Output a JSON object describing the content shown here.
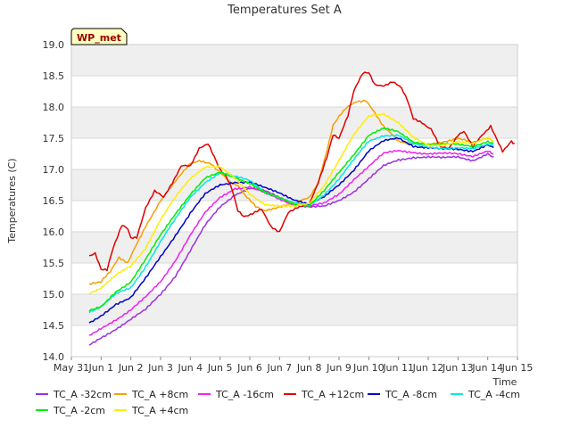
{
  "chart_data": {
    "type": "line",
    "title": "Temperatures Set A",
    "xlabel": "Time",
    "ylabel": "Temperatures (C)",
    "badge": "WP_met",
    "ylim": [
      14.0,
      19.0
    ],
    "xlim": [
      0,
      15
    ],
    "x_ticks": [
      {
        "v": 0,
        "label": "May 31"
      },
      {
        "v": 1,
        "label": "Jun 1"
      },
      {
        "v": 2,
        "label": "Jun 2"
      },
      {
        "v": 3,
        "label": "Jun 3"
      },
      {
        "v": 4,
        "label": "Jun 4"
      },
      {
        "v": 5,
        "label": "Jun 5"
      },
      {
        "v": 6,
        "label": "Jun 6"
      },
      {
        "v": 7,
        "label": "Jun 7"
      },
      {
        "v": 8,
        "label": "Jun 8"
      },
      {
        "v": 9,
        "label": "Jun 9"
      },
      {
        "v": 10,
        "label": "Jun 10"
      },
      {
        "v": 11,
        "label": "Jun 11"
      },
      {
        "v": 12,
        "label": "Jun 12"
      },
      {
        "v": 13,
        "label": "Jun 13"
      },
      {
        "v": 14,
        "label": "Jun 14"
      },
      {
        "v": 15,
        "label": "Jun 15"
      }
    ],
    "y_ticks": [
      "14.0",
      "14.5",
      "15.0",
      "15.5",
      "16.0",
      "16.5",
      "17.0",
      "17.5",
      "18.0",
      "18.5",
      "19.0"
    ],
    "grid": true,
    "band_fill": "#efefef",
    "legend_position": "bottom",
    "series": [
      {
        "name": "TC_A -32cm",
        "color": "#9b30e0",
        "points": [
          [
            0.6,
            14.2
          ],
          [
            1,
            14.3
          ],
          [
            1.5,
            14.45
          ],
          [
            2,
            14.6
          ],
          [
            2.5,
            14.75
          ],
          [
            3,
            15.0
          ],
          [
            3.5,
            15.3
          ],
          [
            4,
            15.7
          ],
          [
            4.5,
            16.1
          ],
          [
            5,
            16.4
          ],
          [
            5.5,
            16.6
          ],
          [
            6,
            16.7
          ],
          [
            6.5,
            16.65
          ],
          [
            7,
            16.55
          ],
          [
            7.5,
            16.45
          ],
          [
            8,
            16.4
          ],
          [
            8.5,
            16.4
          ],
          [
            9,
            16.5
          ],
          [
            9.5,
            16.65
          ],
          [
            10,
            16.85
          ],
          [
            10.5,
            17.05
          ],
          [
            11,
            17.15
          ],
          [
            11.5,
            17.2
          ],
          [
            12,
            17.2
          ],
          [
            12.5,
            17.18
          ],
          [
            13,
            17.2
          ],
          [
            13.5,
            17.15
          ],
          [
            14,
            17.25
          ],
          [
            14.2,
            17.2
          ]
        ]
      },
      {
        "name": "TC_A +8cm",
        "color": "#f5a000",
        "points": [
          [
            0.6,
            15.15
          ],
          [
            1,
            15.2
          ],
          [
            1.3,
            15.35
          ],
          [
            1.6,
            15.6
          ],
          [
            1.9,
            15.5
          ],
          [
            2.2,
            15.8
          ],
          [
            2.5,
            16.1
          ],
          [
            3,
            16.5
          ],
          [
            3.5,
            16.8
          ],
          [
            4,
            17.1
          ],
          [
            4.3,
            17.15
          ],
          [
            4.7,
            17.1
          ],
          [
            5,
            16.95
          ],
          [
            5.3,
            16.8
          ],
          [
            5.6,
            16.75
          ],
          [
            5.9,
            16.55
          ],
          [
            6.2,
            16.4
          ],
          [
            6.5,
            16.35
          ],
          [
            7,
            16.4
          ],
          [
            7.5,
            16.45
          ],
          [
            8,
            16.55
          ],
          [
            8.3,
            16.8
          ],
          [
            8.6,
            17.3
          ],
          [
            8.8,
            17.7
          ],
          [
            9,
            17.85
          ],
          [
            9.3,
            18.0
          ],
          [
            9.6,
            18.1
          ],
          [
            9.9,
            18.1
          ],
          [
            10.2,
            17.9
          ],
          [
            10.5,
            17.7
          ],
          [
            10.8,
            17.55
          ],
          [
            11,
            17.45
          ],
          [
            11.3,
            17.4
          ],
          [
            11.7,
            17.4
          ],
          [
            12,
            17.4
          ],
          [
            12.5,
            17.45
          ],
          [
            13,
            17.5
          ],
          [
            13.5,
            17.42
          ],
          [
            14,
            17.5
          ],
          [
            14.2,
            17.45
          ]
        ]
      },
      {
        "name": "TC_A -16cm",
        "color": "#f020f0",
        "points": [
          [
            0.6,
            14.35
          ],
          [
            1,
            14.45
          ],
          [
            1.5,
            14.6
          ],
          [
            2,
            14.75
          ],
          [
            2.5,
            14.95
          ],
          [
            3,
            15.2
          ],
          [
            3.5,
            15.55
          ],
          [
            4,
            15.95
          ],
          [
            4.5,
            16.3
          ],
          [
            5,
            16.55
          ],
          [
            5.5,
            16.7
          ],
          [
            6,
            16.72
          ],
          [
            6.5,
            16.62
          ],
          [
            7,
            16.52
          ],
          [
            7.5,
            16.44
          ],
          [
            8,
            16.42
          ],
          [
            8.5,
            16.45
          ],
          [
            9,
            16.6
          ],
          [
            9.5,
            16.85
          ],
          [
            10,
            17.05
          ],
          [
            10.5,
            17.25
          ],
          [
            11,
            17.3
          ],
          [
            11.5,
            17.28
          ],
          [
            12,
            17.25
          ],
          [
            12.5,
            17.25
          ],
          [
            13,
            17.25
          ],
          [
            13.5,
            17.22
          ],
          [
            14,
            17.3
          ],
          [
            14.2,
            17.25
          ]
        ]
      },
      {
        "name": "TC_A +12cm",
        "color": "#e00000",
        "points": [
          [
            0.6,
            15.6
          ],
          [
            0.8,
            15.65
          ],
          [
            1,
            15.4
          ],
          [
            1.2,
            15.4
          ],
          [
            1.4,
            15.75
          ],
          [
            1.7,
            16.1
          ],
          [
            1.9,
            16.05
          ],
          [
            2,
            15.9
          ],
          [
            2.2,
            15.9
          ],
          [
            2.5,
            16.4
          ],
          [
            2.8,
            16.65
          ],
          [
            3.1,
            16.55
          ],
          [
            3.4,
            16.8
          ],
          [
            3.7,
            17.05
          ],
          [
            4,
            17.05
          ],
          [
            4.3,
            17.35
          ],
          [
            4.6,
            17.4
          ],
          [
            4.8,
            17.2
          ],
          [
            5,
            17.0
          ],
          [
            5.2,
            16.9
          ],
          [
            5.4,
            16.7
          ],
          [
            5.6,
            16.35
          ],
          [
            5.8,
            16.25
          ],
          [
            6.1,
            16.3
          ],
          [
            6.4,
            16.35
          ],
          [
            6.7,
            16.1
          ],
          [
            7,
            16.0
          ],
          [
            7.3,
            16.3
          ],
          [
            7.6,
            16.4
          ],
          [
            8,
            16.45
          ],
          [
            8.3,
            16.8
          ],
          [
            8.6,
            17.2
          ],
          [
            8.8,
            17.55
          ],
          [
            9,
            17.5
          ],
          [
            9.3,
            17.85
          ],
          [
            9.5,
            18.25
          ],
          [
            9.8,
            18.55
          ],
          [
            10,
            18.55
          ],
          [
            10.2,
            18.35
          ],
          [
            10.5,
            18.35
          ],
          [
            10.8,
            18.4
          ],
          [
            11.1,
            18.3
          ],
          [
            11.3,
            18.1
          ],
          [
            11.5,
            17.8
          ],
          [
            11.8,
            17.75
          ],
          [
            12.1,
            17.65
          ],
          [
            12.4,
            17.35
          ],
          [
            12.7,
            17.35
          ],
          [
            13,
            17.55
          ],
          [
            13.2,
            17.62
          ],
          [
            13.5,
            17.35
          ],
          [
            13.8,
            17.55
          ],
          [
            14.1,
            17.7
          ],
          [
            14.3,
            17.5
          ],
          [
            14.5,
            17.3
          ],
          [
            14.8,
            17.45
          ],
          [
            14.9,
            17.42
          ]
        ]
      },
      {
        "name": "TC_A -8cm",
        "color": "#0000cc",
        "points": [
          [
            0.6,
            14.55
          ],
          [
            1,
            14.65
          ],
          [
            1.5,
            14.85
          ],
          [
            2,
            14.95
          ],
          [
            2.5,
            15.25
          ],
          [
            3,
            15.6
          ],
          [
            3.5,
            15.95
          ],
          [
            4,
            16.3
          ],
          [
            4.5,
            16.6
          ],
          [
            5,
            16.75
          ],
          [
            5.5,
            16.8
          ],
          [
            6,
            16.8
          ],
          [
            6.5,
            16.7
          ],
          [
            7,
            16.62
          ],
          [
            7.5,
            16.52
          ],
          [
            8,
            16.45
          ],
          [
            8.5,
            16.55
          ],
          [
            9,
            16.75
          ],
          [
            9.5,
            17.0
          ],
          [
            10,
            17.3
          ],
          [
            10.5,
            17.45
          ],
          [
            11,
            17.5
          ],
          [
            11.5,
            17.38
          ],
          [
            12,
            17.35
          ],
          [
            12.5,
            17.32
          ],
          [
            13,
            17.32
          ],
          [
            13.5,
            17.3
          ],
          [
            14,
            17.4
          ],
          [
            14.2,
            17.35
          ]
        ]
      },
      {
        "name": "TC_A -4cm",
        "color": "#00e8e8",
        "points": [
          [
            0.6,
            14.7
          ],
          [
            1,
            14.8
          ],
          [
            1.5,
            15.0
          ],
          [
            2,
            15.1
          ],
          [
            2.5,
            15.45
          ],
          [
            3,
            15.85
          ],
          [
            3.5,
            16.2
          ],
          [
            4,
            16.55
          ],
          [
            4.5,
            16.8
          ],
          [
            5,
            16.95
          ],
          [
            5.5,
            16.88
          ],
          [
            6,
            16.82
          ],
          [
            6.5,
            16.65
          ],
          [
            7,
            16.55
          ],
          [
            7.5,
            16.45
          ],
          [
            8,
            16.42
          ],
          [
            8.5,
            16.6
          ],
          [
            9,
            16.85
          ],
          [
            9.5,
            17.15
          ],
          [
            10,
            17.45
          ],
          [
            10.5,
            17.55
          ],
          [
            11,
            17.55
          ],
          [
            11.5,
            17.4
          ],
          [
            12,
            17.35
          ],
          [
            12.5,
            17.35
          ],
          [
            13,
            17.35
          ],
          [
            13.5,
            17.32
          ],
          [
            14,
            17.4
          ],
          [
            14.2,
            17.38
          ]
        ]
      },
      {
        "name": "TC_A -2cm",
        "color": "#00ee00",
        "points": [
          [
            0.6,
            14.75
          ],
          [
            1,
            14.8
          ],
          [
            1.5,
            15.05
          ],
          [
            2,
            15.2
          ],
          [
            2.5,
            15.55
          ],
          [
            3,
            15.95
          ],
          [
            3.5,
            16.3
          ],
          [
            4,
            16.6
          ],
          [
            4.5,
            16.85
          ],
          [
            5,
            16.95
          ],
          [
            5.5,
            16.88
          ],
          [
            6,
            16.78
          ],
          [
            6.5,
            16.62
          ],
          [
            7,
            16.55
          ],
          [
            7.5,
            16.45
          ],
          [
            8,
            16.42
          ],
          [
            8.5,
            16.65
          ],
          [
            9,
            16.95
          ],
          [
            9.5,
            17.25
          ],
          [
            10,
            17.55
          ],
          [
            10.5,
            17.65
          ],
          [
            11,
            17.6
          ],
          [
            11.5,
            17.45
          ],
          [
            12,
            17.4
          ],
          [
            12.5,
            17.4
          ],
          [
            13,
            17.4
          ],
          [
            13.5,
            17.38
          ],
          [
            14,
            17.45
          ],
          [
            14.2,
            17.42
          ]
        ]
      },
      {
        "name": "TC_A +4cm",
        "color": "#ffee00",
        "points": [
          [
            0.6,
            15.0
          ],
          [
            1,
            15.1
          ],
          [
            1.5,
            15.3
          ],
          [
            2,
            15.45
          ],
          [
            2.5,
            15.75
          ],
          [
            3,
            16.2
          ],
          [
            3.5,
            16.55
          ],
          [
            4,
            16.85
          ],
          [
            4.5,
            17.05
          ],
          [
            5,
            17.05
          ],
          [
            5.5,
            16.85
          ],
          [
            6,
            16.6
          ],
          [
            6.5,
            16.45
          ],
          [
            7,
            16.42
          ],
          [
            7.5,
            16.4
          ],
          [
            8,
            16.45
          ],
          [
            8.5,
            16.75
          ],
          [
            9,
            17.15
          ],
          [
            9.5,
            17.55
          ],
          [
            10,
            17.85
          ],
          [
            10.5,
            17.9
          ],
          [
            11,
            17.75
          ],
          [
            11.5,
            17.5
          ],
          [
            12,
            17.38
          ],
          [
            12.5,
            17.4
          ],
          [
            13,
            17.45
          ],
          [
            13.5,
            17.4
          ],
          [
            14,
            17.5
          ],
          [
            14.2,
            17.45
          ]
        ]
      }
    ]
  }
}
